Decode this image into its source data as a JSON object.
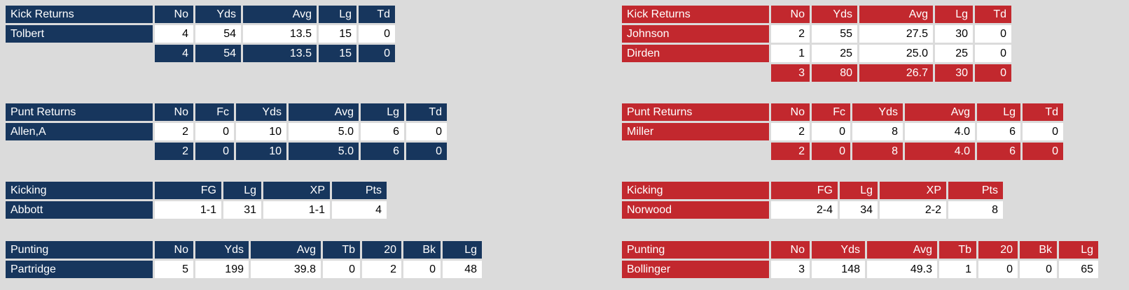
{
  "background": "#DBDBDB",
  "accent_colors": {
    "left": "#17365D",
    "right": "#C2282E"
  },
  "left_team": {
    "tables": [
      {
        "title": "Kick Returns",
        "columns": [
          "No",
          "Yds",
          "Avg",
          "Lg",
          "Td"
        ],
        "rows": [
          {
            "name": "Tolbert",
            "values": [
              "4",
              "54",
              "13.5",
              "15",
              "0"
            ]
          }
        ],
        "totals": [
          "4",
          "54",
          "13.5",
          "15",
          "0"
        ]
      },
      {
        "title": "Punt Returns",
        "columns": [
          "No",
          "Fc",
          "Yds",
          "Avg",
          "Lg",
          "Td"
        ],
        "rows": [
          {
            "name": "Allen,A",
            "values": [
              "2",
              "0",
              "10",
              "5.0",
              "6",
              "0"
            ]
          }
        ],
        "totals": [
          "2",
          "0",
          "10",
          "5.0",
          "6",
          "0"
        ]
      },
      {
        "title": "Kicking",
        "columns": [
          "FG",
          "Lg",
          "XP",
          "Pts"
        ],
        "rows": [
          {
            "name": "Abbott",
            "values": [
              "1-1",
              "31",
              "1-1",
              "4"
            ]
          }
        ]
      },
      {
        "title": "Punting",
        "columns": [
          "No",
          "Yds",
          "Avg",
          "Tb",
          "20",
          "Bk",
          "Lg"
        ],
        "rows": [
          {
            "name": "Partridge",
            "values": [
              "5",
              "199",
              "39.8",
              "0",
              "2",
              "0",
              "48"
            ]
          }
        ]
      }
    ]
  },
  "right_team": {
    "tables": [
      {
        "title": "Kick Returns",
        "columns": [
          "No",
          "Yds",
          "Avg",
          "Lg",
          "Td"
        ],
        "rows": [
          {
            "name": "Johnson",
            "values": [
              "2",
              "55",
              "27.5",
              "30",
              "0"
            ]
          },
          {
            "name": "Dirden",
            "values": [
              "1",
              "25",
              "25.0",
              "25",
              "0"
            ]
          }
        ],
        "totals": [
          "3",
          "80",
          "26.7",
          "30",
          "0"
        ]
      },
      {
        "title": "Punt Returns",
        "columns": [
          "No",
          "Fc",
          "Yds",
          "Avg",
          "Lg",
          "Td"
        ],
        "rows": [
          {
            "name": "Miller",
            "values": [
              "2",
              "0",
              "8",
              "4.0",
              "6",
              "0"
            ]
          }
        ],
        "totals": [
          "2",
          "0",
          "8",
          "4.0",
          "6",
          "0"
        ]
      },
      {
        "title": "Kicking",
        "columns": [
          "FG",
          "Lg",
          "XP",
          "Pts"
        ],
        "rows": [
          {
            "name": "Norwood",
            "values": [
              "2-4",
              "34",
              "2-2",
              "8"
            ]
          }
        ]
      },
      {
        "title": "Punting",
        "columns": [
          "No",
          "Yds",
          "Avg",
          "Tb",
          "20",
          "Bk",
          "Lg"
        ],
        "rows": [
          {
            "name": "Bollinger",
            "values": [
              "3",
              "148",
              "49.3",
              "1",
              "0",
              "0",
              "65"
            ]
          }
        ]
      }
    ]
  }
}
